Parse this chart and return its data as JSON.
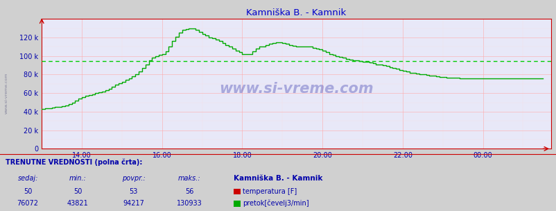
{
  "title": "Kamniška B. - Kamnik",
  "title_color": "#0000cc",
  "bg_color": "#d0d0d0",
  "plot_bg_color": "#e8e8f8",
  "grid_color_major": "#ffaaaa",
  "grid_color_minor": "#ffdddd",
  "flow_line_color": "#00aa00",
  "flow_avg_line_color": "#00cc00",
  "temp_line_color": "#cc0000",
  "x_tick_labels": [
    "14:00",
    "16:00",
    "18:00",
    "20:00",
    "22:00",
    "00:00"
  ],
  "x_ticks_numeric": [
    14,
    16,
    18,
    20,
    22,
    24
  ],
  "xlim": [
    13.0,
    25.7
  ],
  "ylim": [
    0,
    140000
  ],
  "y_ticks": [
    0,
    20000,
    40000,
    60000,
    80000,
    100000,
    120000
  ],
  "y_tick_labels": [
    "0",
    "20 k",
    "40 k",
    "60 k",
    "80 k",
    "100 k",
    "120 k"
  ],
  "flow_avg": 94217,
  "flow_current": 76072,
  "flow_min": 43821,
  "flow_max": 130933,
  "temp_current": 50,
  "temp_min": 50,
  "temp_avg": 53,
  "temp_max": 56,
  "watermark": "www.si-vreme.com",
  "watermark_color": "#3333aa",
  "watermark_alpha": 0.35,
  "label_color": "#0000aa",
  "spine_color": "#cc0000",
  "footer_header": "TRENUTNE VREDNOSTI (polna črta):",
  "footer_col1": "sedaj:",
  "footer_col2": "min.:",
  "footer_col3": "povpr.:",
  "footer_col4": "maks.:",
  "footer_station": "Kamniška B. - Kamnik",
  "footer_temp_label": "temperatura [F]",
  "footer_flow_label": "pretok[čevelj3/min]",
  "flow_data_x": [
    13.0,
    13.083,
    13.167,
    13.25,
    13.333,
    13.417,
    13.5,
    13.583,
    13.667,
    13.75,
    13.833,
    13.917,
    14.0,
    14.083,
    14.167,
    14.25,
    14.333,
    14.417,
    14.5,
    14.583,
    14.667,
    14.75,
    14.833,
    14.917,
    15.0,
    15.083,
    15.167,
    15.25,
    15.333,
    15.417,
    15.5,
    15.583,
    15.667,
    15.75,
    15.833,
    15.917,
    16.0,
    16.083,
    16.167,
    16.25,
    16.333,
    16.417,
    16.5,
    16.583,
    16.667,
    16.75,
    16.833,
    16.917,
    17.0,
    17.083,
    17.167,
    17.25,
    17.333,
    17.417,
    17.5,
    17.583,
    17.667,
    17.75,
    17.833,
    17.917,
    18.0,
    18.083,
    18.167,
    18.25,
    18.333,
    18.417,
    18.5,
    18.583,
    18.667,
    18.75,
    18.833,
    18.917,
    19.0,
    19.083,
    19.167,
    19.25,
    19.333,
    19.417,
    19.5,
    19.583,
    19.667,
    19.75,
    19.833,
    19.917,
    20.0,
    20.083,
    20.167,
    20.25,
    20.333,
    20.417,
    20.5,
    20.583,
    20.667,
    20.75,
    20.833,
    20.917,
    21.0,
    21.083,
    21.167,
    21.25,
    21.333,
    21.417,
    21.5,
    21.583,
    21.667,
    21.75,
    21.833,
    21.917,
    22.0,
    22.083,
    22.167,
    22.25,
    22.333,
    22.417,
    22.5,
    22.583,
    22.667,
    22.75,
    22.833,
    22.917,
    23.0,
    23.083,
    23.167,
    23.25,
    23.333,
    23.417,
    23.5,
    23.583,
    23.667,
    23.75,
    23.833,
    23.917,
    24.0,
    24.083,
    24.167,
    24.25,
    24.333,
    24.5,
    24.667,
    24.833,
    25.0,
    25.167,
    25.333,
    25.5
  ],
  "flow_data_y": [
    43000,
    43500,
    44000,
    44500,
    45000,
    45500,
    46000,
    47000,
    48500,
    50000,
    52000,
    54000,
    56000,
    57000,
    58000,
    59000,
    60000,
    61000,
    62000,
    63000,
    65000,
    67000,
    69000,
    71000,
    72000,
    74000,
    76000,
    78000,
    80000,
    83000,
    87000,
    91000,
    95000,
    98000,
    100000,
    101000,
    102000,
    105000,
    110000,
    116000,
    121000,
    125000,
    128000,
    129000,
    130000,
    129500,
    128000,
    126000,
    124000,
    122000,
    120000,
    119000,
    118000,
    116000,
    114000,
    112000,
    110000,
    108000,
    106000,
    104000,
    102000,
    102000,
    102000,
    105000,
    108000,
    110000,
    110000,
    112000,
    113000,
    114000,
    115000,
    114500,
    114000,
    113000,
    112000,
    111000,
    110000,
    110000,
    110000,
    110000,
    110000,
    109000,
    108000,
    107000,
    106000,
    104000,
    102000,
    101000,
    100000,
    99000,
    98000,
    97000,
    96000,
    95500,
    95000,
    94500,
    94000,
    93500,
    93000,
    92000,
    91000,
    90500,
    90000,
    89000,
    88000,
    87000,
    86000,
    85000,
    84000,
    83000,
    82000,
    81500,
    81000,
    80500,
    80000,
    79500,
    79000,
    78500,
    78000,
    77500,
    77000,
    76800,
    76600,
    76500,
    76300,
    76200,
    76100,
    76100,
    76072,
    76072,
    76072,
    76072,
    76072,
    76072,
    76072,
    76072,
    76072,
    76072,
    76072,
    76072,
    76072,
    76072,
    76072,
    76072
  ]
}
